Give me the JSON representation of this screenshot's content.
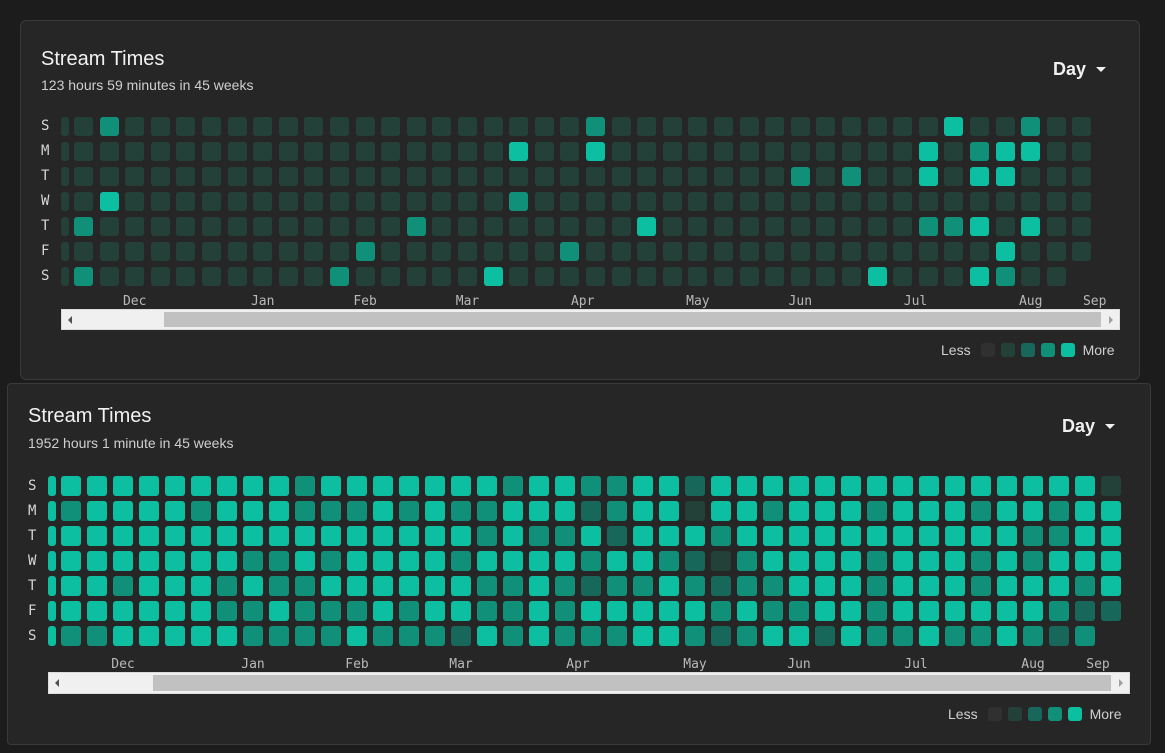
{
  "colors": {
    "page_bg": "#1c1c1c",
    "card_bg": "#262626",
    "levels": [
      "#303030",
      "#244139",
      "#17685a",
      "#108f79",
      "#0bbfa0"
    ]
  },
  "weekdays": [
    "S",
    "M",
    "T",
    "W",
    "T",
    "F",
    "S"
  ],
  "legend": {
    "less": "Less",
    "more": "More"
  },
  "panels": [
    {
      "title": "Stream Times",
      "subtitle": "123 hours 59 minutes in 45 weeks",
      "range_label": "Day",
      "months": [
        {
          "label": "Dec",
          "week": 3
        },
        {
          "label": "Jan",
          "week": 8
        },
        {
          "label": "Feb",
          "week": 12
        },
        {
          "label": "Mar",
          "week": 16
        },
        {
          "label": "Apr",
          "week": 20.5
        },
        {
          "label": "May",
          "week": 25
        },
        {
          "label": "Jun",
          "week": 29
        },
        {
          "label": "Jul",
          "week": 33.5
        },
        {
          "label": "Aug",
          "week": 38
        },
        {
          "label": "Sep",
          "week": 40.5
        }
      ],
      "weeks": 41,
      "base_level": 1,
      "first_week_partial": true,
      "last_week_days": 7,
      "empty_cells": [
        [
          40,
          6
        ]
      ],
      "active_cells": [
        [
          2,
          0,
          3
        ],
        [
          21,
          0,
          3
        ],
        [
          35,
          0,
          4
        ],
        [
          38,
          0,
          3
        ],
        [
          18,
          1,
          4
        ],
        [
          21,
          1,
          4
        ],
        [
          34,
          1,
          4
        ],
        [
          36,
          1,
          3
        ],
        [
          37,
          1,
          4
        ],
        [
          38,
          1,
          4
        ],
        [
          29,
          2,
          3
        ],
        [
          31,
          2,
          3
        ],
        [
          34,
          2,
          4
        ],
        [
          36,
          2,
          4
        ],
        [
          37,
          2,
          4
        ],
        [
          2,
          3,
          4
        ],
        [
          18,
          3,
          3
        ],
        [
          1,
          4,
          3
        ],
        [
          14,
          4,
          3
        ],
        [
          23,
          4,
          4
        ],
        [
          34,
          4,
          3
        ],
        [
          35,
          4,
          3
        ],
        [
          36,
          4,
          4
        ],
        [
          38,
          4,
          4
        ],
        [
          12,
          5,
          3
        ],
        [
          20,
          5,
          3
        ],
        [
          37,
          5,
          4
        ],
        [
          1,
          6,
          3
        ],
        [
          11,
          6,
          3
        ],
        [
          17,
          6,
          4
        ],
        [
          32,
          6,
          4
        ],
        [
          36,
          6,
          4
        ],
        [
          37,
          6,
          3
        ]
      ]
    },
    {
      "title": "Stream Times",
      "subtitle": "1952 hours 1 minute in 45 weeks",
      "range_label": "Day",
      "months": [
        {
          "label": "Dec",
          "week": 3
        },
        {
          "label": "Jan",
          "week": 8
        },
        {
          "label": "Feb",
          "week": 12
        },
        {
          "label": "Mar",
          "week": 16
        },
        {
          "label": "Apr",
          "week": 20.5
        },
        {
          "label": "May",
          "week": 25
        },
        {
          "label": "Jun",
          "week": 29
        },
        {
          "label": "Jul",
          "week": 33.5
        },
        {
          "label": "Aug",
          "week": 38
        },
        {
          "label": "Sep",
          "week": 40.5
        }
      ],
      "weeks": 42,
      "base_level": 4,
      "first_week_partial": true,
      "last_week_days": 7,
      "empty_cells": [
        [
          41,
          6
        ]
      ],
      "active_cells": [
        [
          10,
          0,
          3
        ],
        [
          18,
          0,
          3
        ],
        [
          21,
          0,
          3
        ],
        [
          22,
          0,
          3
        ],
        [
          25,
          0,
          2
        ],
        [
          41,
          0,
          1
        ],
        [
          1,
          1,
          3
        ],
        [
          6,
          1,
          3
        ],
        [
          10,
          1,
          3
        ],
        [
          11,
          1,
          3
        ],
        [
          12,
          1,
          3
        ],
        [
          14,
          1,
          3
        ],
        [
          16,
          1,
          3
        ],
        [
          17,
          1,
          3
        ],
        [
          21,
          1,
          2
        ],
        [
          22,
          1,
          3
        ],
        [
          25,
          1,
          1
        ],
        [
          28,
          1,
          3
        ],
        [
          32,
          1,
          3
        ],
        [
          36,
          1,
          3
        ],
        [
          39,
          1,
          3
        ],
        [
          17,
          2,
          3
        ],
        [
          19,
          2,
          3
        ],
        [
          20,
          2,
          3
        ],
        [
          22,
          2,
          2
        ],
        [
          26,
          2,
          3
        ],
        [
          38,
          2,
          3
        ],
        [
          39,
          2,
          3
        ],
        [
          8,
          3,
          3
        ],
        [
          9,
          3,
          3
        ],
        [
          11,
          3,
          3
        ],
        [
          16,
          3,
          3
        ],
        [
          21,
          3,
          3
        ],
        [
          24,
          3,
          3
        ],
        [
          25,
          3,
          2
        ],
        [
          26,
          3,
          1
        ],
        [
          27,
          3,
          3
        ],
        [
          32,
          3,
          3
        ],
        [
          36,
          3,
          3
        ],
        [
          38,
          3,
          3
        ],
        [
          3,
          4,
          3
        ],
        [
          7,
          4,
          3
        ],
        [
          9,
          4,
          3
        ],
        [
          10,
          4,
          3
        ],
        [
          17,
          4,
          3
        ],
        [
          18,
          4,
          3
        ],
        [
          20,
          4,
          3
        ],
        [
          21,
          4,
          2
        ],
        [
          22,
          4,
          3
        ],
        [
          23,
          4,
          3
        ],
        [
          25,
          4,
          3
        ],
        [
          26,
          4,
          2
        ],
        [
          27,
          4,
          3
        ],
        [
          28,
          4,
          3
        ],
        [
          32,
          4,
          3
        ],
        [
          36,
          4,
          3
        ],
        [
          40,
          4,
          3
        ],
        [
          7,
          5,
          3
        ],
        [
          8,
          5,
          3
        ],
        [
          10,
          5,
          3
        ],
        [
          11,
          5,
          3
        ],
        [
          12,
          5,
          3
        ],
        [
          14,
          5,
          3
        ],
        [
          17,
          5,
          3
        ],
        [
          18,
          5,
          3
        ],
        [
          20,
          5,
          3
        ],
        [
          26,
          5,
          3
        ],
        [
          28,
          5,
          3
        ],
        [
          29,
          5,
          3
        ],
        [
          32,
          5,
          3
        ],
        [
          39,
          5,
          3
        ],
        [
          40,
          5,
          2
        ],
        [
          41,
          5,
          2
        ],
        [
          1,
          6,
          3
        ],
        [
          2,
          6,
          3
        ],
        [
          8,
          6,
          3
        ],
        [
          9,
          6,
          3
        ],
        [
          10,
          6,
          3
        ],
        [
          11,
          6,
          3
        ],
        [
          13,
          6,
          3
        ],
        [
          14,
          6,
          3
        ],
        [
          15,
          6,
          3
        ],
        [
          16,
          6,
          2
        ],
        [
          18,
          6,
          3
        ],
        [
          20,
          6,
          3
        ],
        [
          21,
          6,
          3
        ],
        [
          22,
          6,
          3
        ],
        [
          25,
          6,
          3
        ],
        [
          26,
          6,
          2
        ],
        [
          27,
          6,
          3
        ],
        [
          30,
          6,
          2
        ],
        [
          32,
          6,
          3
        ],
        [
          33,
          6,
          3
        ],
        [
          35,
          6,
          3
        ],
        [
          36,
          6,
          3
        ],
        [
          38,
          6,
          3
        ],
        [
          39,
          6,
          2
        ],
        [
          40,
          6,
          3
        ]
      ]
    }
  ]
}
